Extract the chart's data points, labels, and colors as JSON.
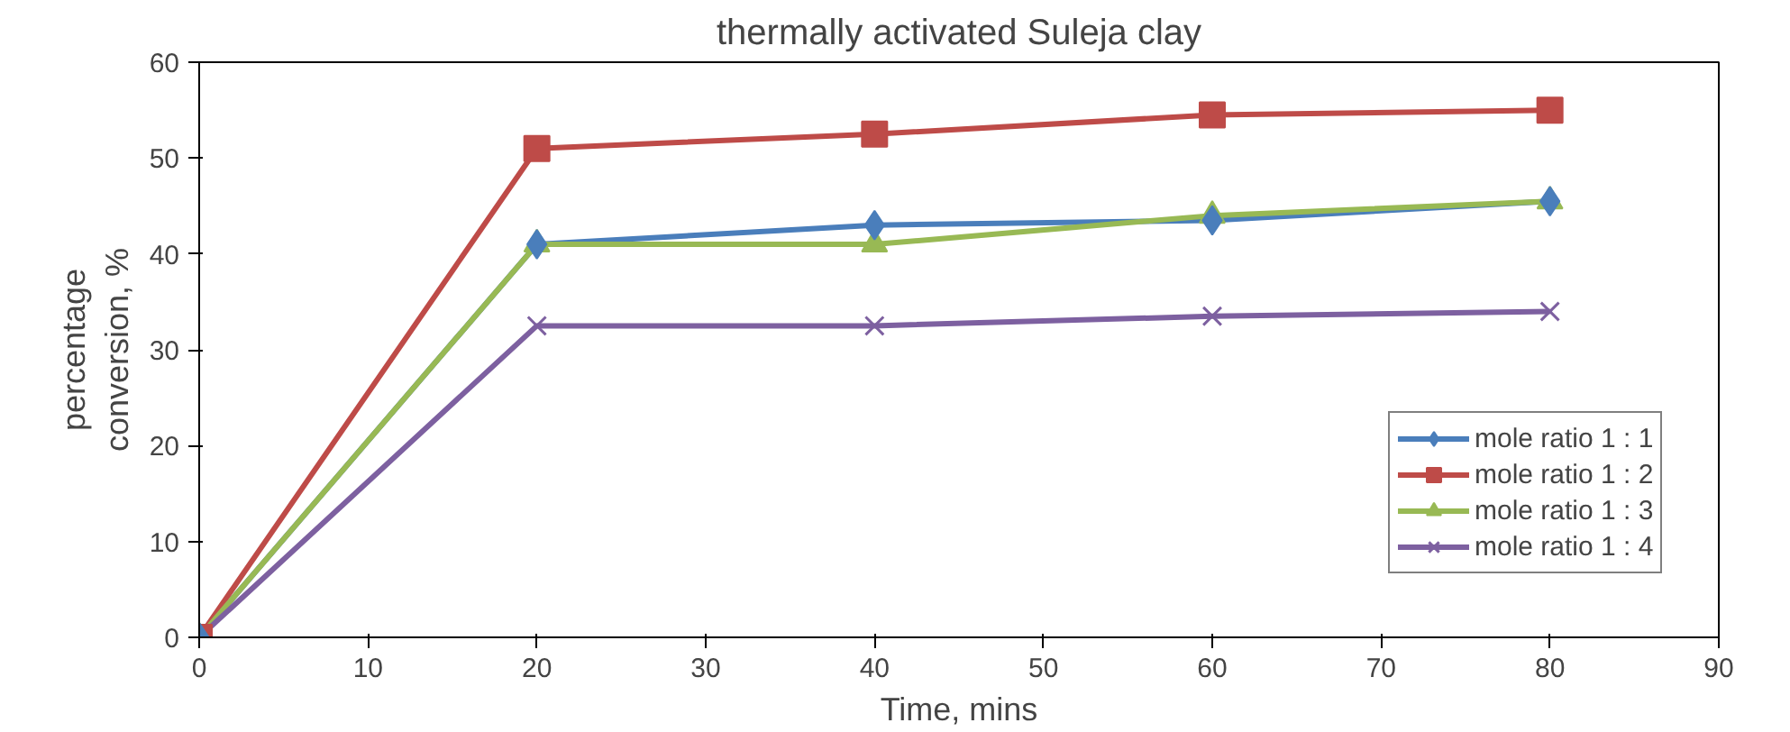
{
  "chart_data": {
    "type": "line",
    "title": "thermally activated Suleja clay",
    "xlabel": "Time, mins",
    "ylabel": "percentage\nconversion, %",
    "x": [
      0,
      20,
      40,
      60,
      80
    ],
    "xlim": [
      0,
      90
    ],
    "xticks": [
      0,
      10,
      20,
      30,
      40,
      50,
      60,
      70,
      80,
      90
    ],
    "ylim": [
      0,
      60
    ],
    "yticks": [
      0,
      10,
      20,
      30,
      40,
      50,
      60
    ],
    "grid": false,
    "legend": "right",
    "line_style": "solid",
    "series": [
      {
        "name": "mole ratio 1 : 1",
        "color": "#4a7ebb",
        "marker": "diamond",
        "values": [
          0,
          41,
          43,
          43.5,
          45.5
        ]
      },
      {
        "name": "mole ratio 1 : 2",
        "color": "#be4b48",
        "marker": "square",
        "values": [
          0,
          51,
          52.5,
          54.5,
          55
        ]
      },
      {
        "name": "mole ratio 1 : 3",
        "color": "#98b954",
        "marker": "triangle",
        "values": [
          0,
          41,
          41,
          44,
          45.5
        ]
      },
      {
        "name": "mole ratio 1 : 4",
        "color": "#7d60a0",
        "marker": "cross",
        "values": [
          0,
          32.5,
          32.5,
          33.5,
          34
        ]
      }
    ]
  }
}
